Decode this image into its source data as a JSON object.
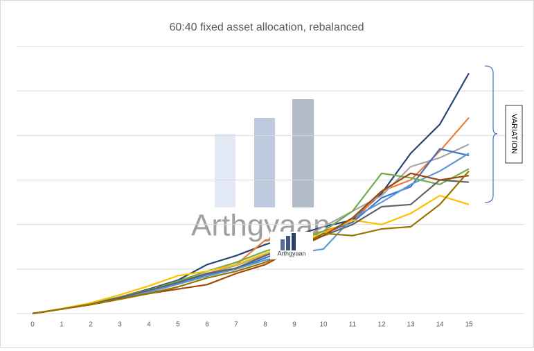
{
  "chart_data": {
    "type": "line",
    "title": "60:40 fixed asset allocation, rebalanced",
    "x": [
      0,
      1,
      2,
      3,
      4,
      5,
      6,
      7,
      8,
      9,
      10,
      11,
      12,
      13,
      14,
      15
    ],
    "xlim": [
      0,
      15
    ],
    "xticks": [
      0,
      1,
      2,
      3,
      4,
      5,
      6,
      7,
      8,
      9,
      10,
      11,
      12,
      13,
      14,
      15
    ],
    "ylim": [
      0,
      6
    ],
    "grid_lines": [
      0,
      1,
      2,
      3,
      4,
      5,
      6
    ],
    "grid": true,
    "annotation": "VARIATION",
    "watermark": "Arthgyaan",
    "logo_text": "Arthgyaan",
    "series": [
      {
        "color": "#264478",
        "values": [
          0,
          0.1,
          0.22,
          0.37,
          0.55,
          0.75,
          1.1,
          1.3,
          1.55,
          1.75,
          1.95,
          2.1,
          2.7,
          3.6,
          4.25,
          5.4
        ]
      },
      {
        "color": "#ed7d31",
        "values": [
          0,
          0.1,
          0.21,
          0.35,
          0.5,
          0.7,
          0.88,
          1.1,
          1.65,
          1.7,
          1.85,
          2.05,
          2.75,
          3.0,
          3.65,
          4.4
        ]
      },
      {
        "color": "#a5a5a5",
        "values": [
          0,
          0.1,
          0.22,
          0.36,
          0.52,
          0.72,
          0.9,
          1.08,
          1.32,
          1.6,
          1.95,
          2.3,
          2.65,
          3.3,
          3.5,
          3.8
        ]
      },
      {
        "color": "#4472c4",
        "values": [
          0,
          0.1,
          0.21,
          0.35,
          0.5,
          0.68,
          0.88,
          1.0,
          1.25,
          1.5,
          1.8,
          2.05,
          2.6,
          2.85,
          3.7,
          3.55
        ]
      },
      {
        "color": "#5b9bd5",
        "values": [
          0,
          0.1,
          0.2,
          0.34,
          0.48,
          0.66,
          0.84,
          1.0,
          1.2,
          1.35,
          1.45,
          2.15,
          2.5,
          2.9,
          3.2,
          3.6
        ]
      },
      {
        "color": "#70ad47",
        "values": [
          0,
          0.1,
          0.22,
          0.37,
          0.53,
          0.73,
          0.95,
          1.15,
          1.4,
          1.6,
          1.85,
          2.3,
          3.15,
          3.05,
          2.9,
          3.25
        ]
      },
      {
        "color": "#ffc000",
        "values": [
          0,
          0.11,
          0.24,
          0.42,
          0.62,
          0.85,
          0.95,
          1.1,
          1.35,
          1.55,
          1.8,
          2.1,
          2.0,
          2.25,
          2.65,
          2.45
        ]
      },
      {
        "color": "#636363",
        "values": [
          0,
          0.1,
          0.21,
          0.36,
          0.52,
          0.7,
          0.9,
          1.02,
          1.3,
          1.55,
          1.75,
          2.0,
          2.4,
          2.45,
          3.0,
          2.95
        ]
      },
      {
        "color": "#9e480e",
        "values": [
          0,
          0.1,
          0.2,
          0.33,
          0.45,
          0.55,
          0.65,
          0.9,
          1.1,
          1.45,
          1.75,
          2.15,
          2.75,
          3.15,
          3.0,
          3.1
        ]
      },
      {
        "color": "#997300",
        "values": [
          0,
          0.1,
          0.2,
          0.32,
          0.45,
          0.6,
          0.8,
          0.95,
          1.15,
          1.45,
          1.8,
          1.75,
          1.9,
          1.95,
          2.45,
          3.2
        ]
      }
    ]
  }
}
